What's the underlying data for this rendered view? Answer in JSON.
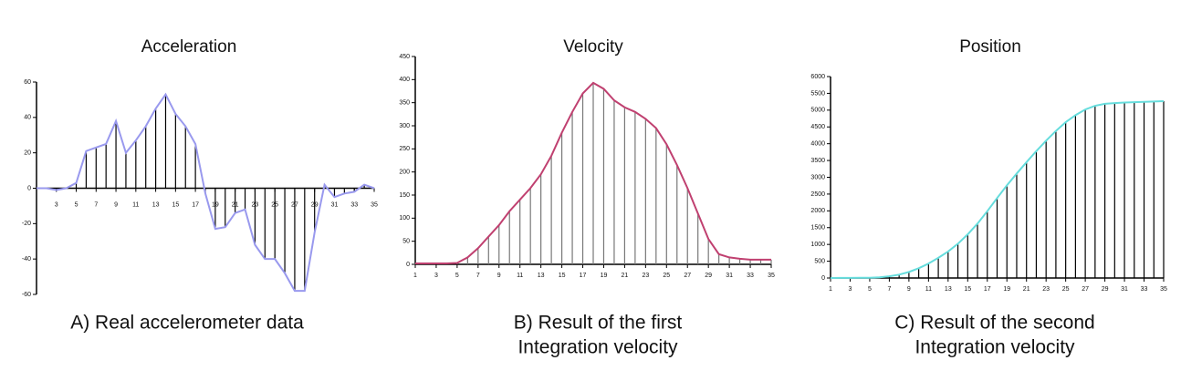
{
  "chart_data": [
    {
      "type": "line",
      "title": "Acceleration",
      "caption": [
        "A) Real accelerometer data"
      ],
      "color": "#9999ee",
      "stem_color": "#000000",
      "x": [
        1,
        2,
        3,
        4,
        5,
        6,
        7,
        8,
        9,
        10,
        11,
        12,
        13,
        14,
        15,
        16,
        17,
        18,
        19,
        20,
        21,
        22,
        23,
        24,
        25,
        26,
        27,
        28,
        29,
        30,
        31,
        32,
        33,
        34,
        35
      ],
      "values": [
        0,
        0,
        -1,
        0,
        3,
        21,
        23,
        25,
        38,
        20,
        27,
        35,
        45,
        53,
        42,
        35,
        25,
        -3,
        -23,
        -22,
        -14,
        -12,
        -32,
        -40,
        -40,
        -48,
        -58,
        -58,
        -25,
        2,
        -5,
        -3,
        -2,
        2,
        0
      ],
      "xlim": [
        1,
        35
      ],
      "xticks": [
        3,
        5,
        7,
        9,
        11,
        13,
        15,
        17,
        19,
        21,
        23,
        25,
        27,
        29,
        31,
        33,
        35
      ],
      "ylim": [
        -60,
        60
      ],
      "yticks": [
        -60,
        -40,
        -20,
        0,
        20,
        40,
        60
      ]
    },
    {
      "type": "line",
      "title": "Velocity",
      "caption": [
        "B) Result of the first",
        "Integration velocity"
      ],
      "color": "#c04070",
      "stem_color": "#777777",
      "x": [
        1,
        2,
        3,
        4,
        5,
        6,
        7,
        8,
        9,
        10,
        11,
        12,
        13,
        14,
        15,
        16,
        17,
        18,
        19,
        20,
        21,
        22,
        23,
        24,
        25,
        26,
        27,
        28,
        29,
        30,
        31,
        32,
        33,
        34,
        35
      ],
      "values": [
        2,
        2,
        2,
        2,
        3,
        15,
        35,
        60,
        85,
        115,
        140,
        165,
        195,
        235,
        285,
        330,
        370,
        393,
        380,
        355,
        340,
        330,
        315,
        295,
        260,
        215,
        165,
        110,
        55,
        22,
        15,
        12,
        10,
        10,
        10
      ],
      "xlim": [
        1,
        35
      ],
      "xticks": [
        1,
        3,
        5,
        7,
        9,
        11,
        13,
        15,
        17,
        19,
        21,
        23,
        25,
        27,
        29,
        31,
        33,
        35
      ],
      "ylim": [
        0,
        450
      ],
      "yticks": [
        0,
        50,
        100,
        150,
        200,
        250,
        300,
        350,
        400,
        450
      ]
    },
    {
      "type": "line",
      "title": "Position",
      "caption": [
        "C) Result of the second",
        "Integration velocity"
      ],
      "color": "#66dddd",
      "stem_color": "#000000",
      "x": [
        1,
        2,
        3,
        4,
        5,
        6,
        7,
        8,
        9,
        10,
        11,
        12,
        13,
        14,
        15,
        16,
        17,
        18,
        19,
        20,
        21,
        22,
        23,
        24,
        25,
        26,
        27,
        28,
        29,
        30,
        31,
        32,
        33,
        34,
        35
      ],
      "values": [
        0,
        2,
        4,
        6,
        8,
        20,
        50,
        100,
        180,
        290,
        430,
        600,
        790,
        1020,
        1300,
        1620,
        1990,
        2380,
        2760,
        3110,
        3450,
        3780,
        4090,
        4380,
        4640,
        4850,
        5020,
        5130,
        5190,
        5210,
        5225,
        5237,
        5247,
        5257,
        5267
      ],
      "xlim": [
        1,
        35
      ],
      "xticks": [
        1,
        3,
        5,
        7,
        9,
        11,
        13,
        15,
        17,
        19,
        21,
        23,
        25,
        27,
        29,
        31,
        33,
        35
      ],
      "ylim": [
        0,
        6000
      ],
      "yticks": [
        0,
        500,
        1000,
        1500,
        2000,
        2500,
        3000,
        3500,
        4000,
        4500,
        5000,
        5500,
        6000
      ]
    }
  ]
}
